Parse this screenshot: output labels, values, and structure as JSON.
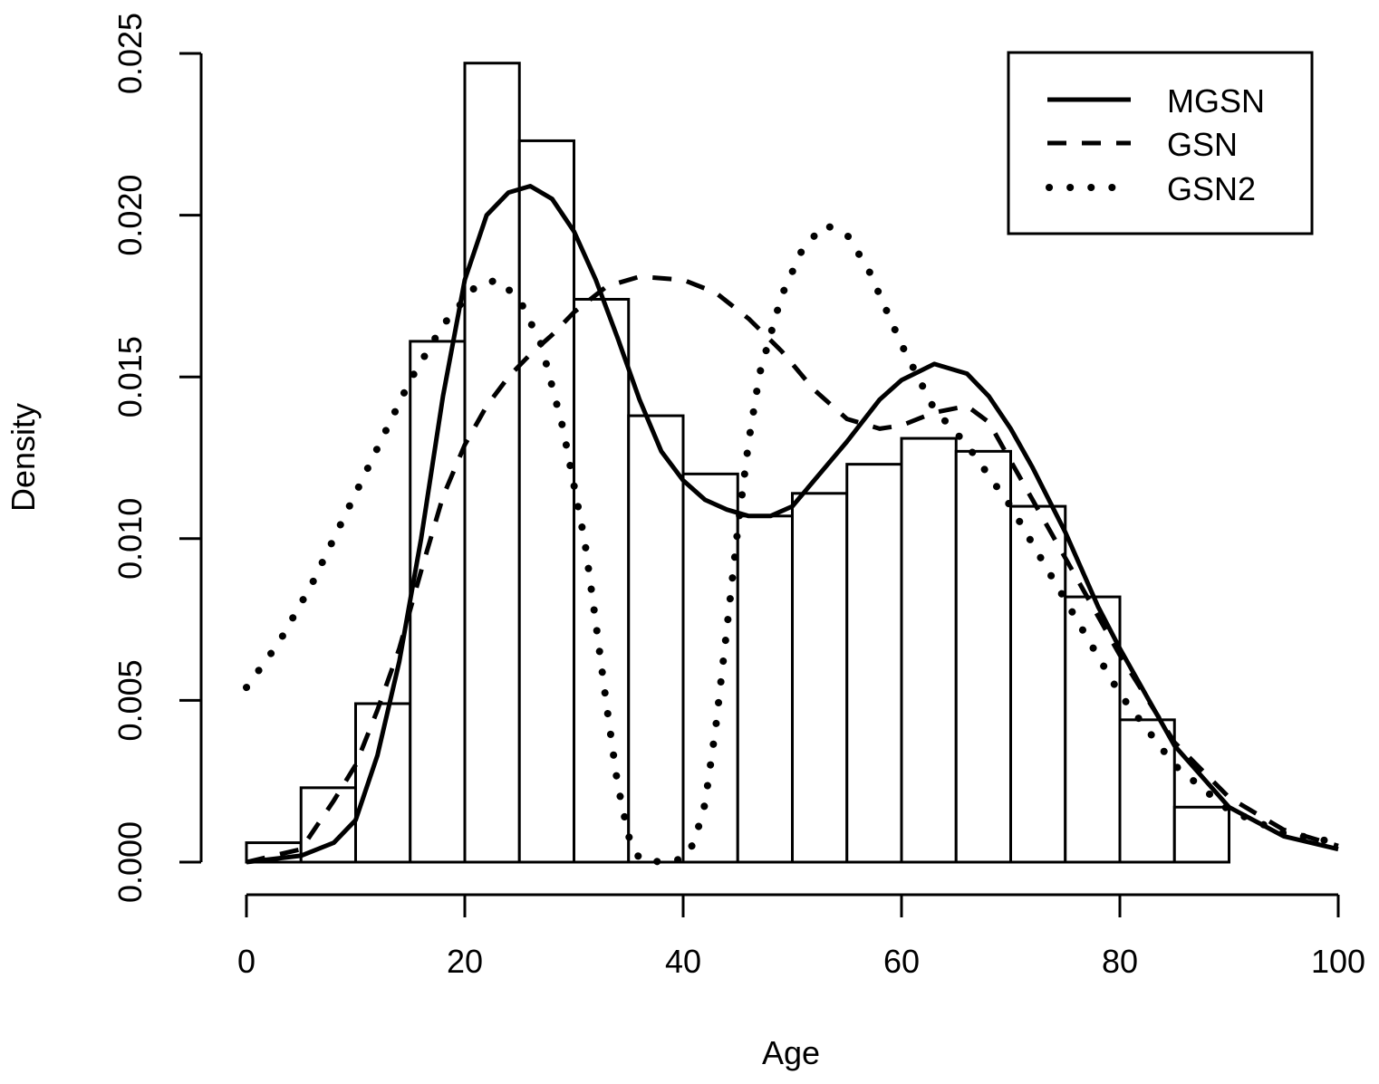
{
  "chart_data": {
    "type": "histogram",
    "title": "",
    "xlabel": "Age",
    "ylabel": "Density",
    "xlim": [
      0,
      100
    ],
    "ylim": [
      0,
      0.025
    ],
    "x_ticks": [
      "0",
      "20",
      "40",
      "60",
      "80",
      "100"
    ],
    "y_ticks": [
      "0.000",
      "0.005",
      "0.010",
      "0.015",
      "0.020",
      "0.025"
    ],
    "histogram": {
      "bin_width": 5,
      "bin_starts": [
        0,
        5,
        10,
        15,
        20,
        25,
        30,
        35,
        40,
        45,
        50,
        55,
        60,
        65,
        70,
        75,
        80,
        85
      ],
      "densities": [
        0.0006,
        0.0023,
        0.0049,
        0.0161,
        0.0247,
        0.0223,
        0.0174,
        0.0138,
        0.012,
        0.0107,
        0.0114,
        0.0123,
        0.0131,
        0.0127,
        0.011,
        0.0082,
        0.0044,
        0.0017
      ]
    },
    "series": [
      {
        "name": "MGSN",
        "style": "solid",
        "x": [
          0,
          5,
          8,
          10,
          12,
          14,
          16,
          18,
          20,
          22,
          24,
          26,
          28,
          30,
          32,
          34,
          36,
          38,
          40,
          42,
          44,
          46,
          48,
          50,
          52,
          55,
          58,
          60,
          63,
          66,
          68,
          70,
          72,
          75,
          78,
          80,
          85,
          90,
          95,
          100
        ],
        "y": [
          0.0,
          0.0002,
          0.0006,
          0.0013,
          0.0033,
          0.0062,
          0.01,
          0.0144,
          0.018,
          0.02,
          0.0207,
          0.0209,
          0.0205,
          0.0195,
          0.018,
          0.0162,
          0.0143,
          0.0127,
          0.0118,
          0.0112,
          0.0109,
          0.0107,
          0.0107,
          0.011,
          0.0118,
          0.013,
          0.0143,
          0.0149,
          0.0154,
          0.0151,
          0.0144,
          0.0134,
          0.0122,
          0.0102,
          0.0079,
          0.0066,
          0.0036,
          0.0017,
          0.0008,
          0.0004
        ]
      },
      {
        "name": "GSN",
        "style": "dashed",
        "x": [
          0,
          5,
          8,
          10,
          12,
          14,
          16,
          18,
          20,
          22,
          24,
          26,
          28,
          30,
          33,
          36,
          40,
          43,
          46,
          49,
          52,
          55,
          58,
          60,
          63,
          66,
          68,
          70,
          72,
          75,
          78,
          80,
          85,
          90,
          95,
          100
        ],
        "y": [
          0.0,
          0.0004,
          0.0019,
          0.003,
          0.0047,
          0.0066,
          0.009,
          0.0113,
          0.0129,
          0.0141,
          0.015,
          0.0157,
          0.0163,
          0.017,
          0.0178,
          0.0181,
          0.018,
          0.0176,
          0.0168,
          0.0158,
          0.0146,
          0.0137,
          0.0134,
          0.0135,
          0.0139,
          0.0141,
          0.0136,
          0.0124,
          0.0112,
          0.0094,
          0.0076,
          0.0064,
          0.0037,
          0.002,
          0.001,
          0.0005
        ]
      },
      {
        "name": "GSN2",
        "style": "dotted",
        "x": [
          0,
          3,
          6,
          9,
          12,
          15,
          18,
          21,
          23,
          25,
          27,
          29,
          31,
          32,
          33,
          34,
          35,
          36,
          38,
          40,
          41,
          42,
          43,
          44,
          45,
          46,
          47,
          49,
          51,
          53,
          55,
          57,
          60,
          63,
          66,
          70,
          75,
          80,
          85,
          90,
          95,
          100
        ],
        "y": [
          0.0054,
          0.0068,
          0.0086,
          0.0107,
          0.0128,
          0.0149,
          0.0166,
          0.0178,
          0.018,
          0.0174,
          0.016,
          0.0134,
          0.0099,
          0.0074,
          0.0048,
          0.0024,
          0.0008,
          0.0001,
          0.0,
          0.0001,
          0.0006,
          0.0018,
          0.0042,
          0.0072,
          0.0103,
          0.013,
          0.0151,
          0.0175,
          0.019,
          0.0197,
          0.0194,
          0.0183,
          0.016,
          0.014,
          0.0129,
          0.011,
          0.0081,
          0.0052,
          0.003,
          0.0016,
          0.0009,
          0.0006
        ]
      }
    ],
    "legend": {
      "position": "top-right",
      "entries": [
        "MGSN",
        "GSN",
        "GSN2"
      ]
    }
  }
}
